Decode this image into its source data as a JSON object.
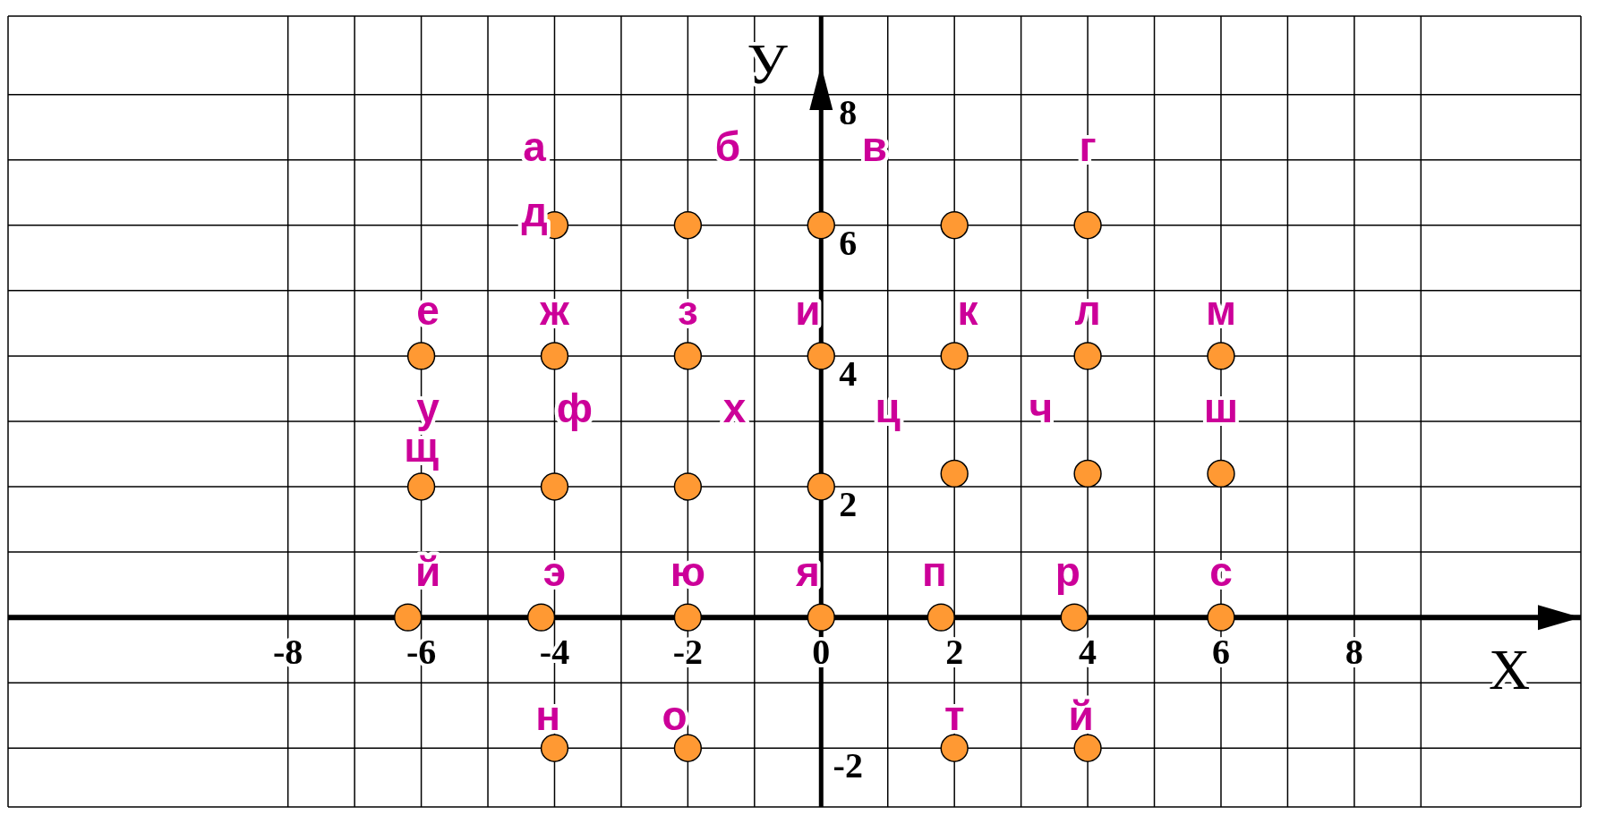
{
  "chart_data": {
    "type": "scatter",
    "xlabel": "X",
    "ylabel": "У",
    "xlim": [
      -12.2,
      11.4
    ],
    "ylim": [
      -2.9,
      9.2
    ],
    "xticks": [
      -8,
      {
        "value": -7,
        "label": null
      },
      -6,
      {
        "value": -5,
        "label": null
      },
      -4,
      {
        "value": -3,
        "label": null
      },
      -2,
      {
        "value": -1,
        "label": null
      },
      0,
      {
        "value": 1,
        "label": null
      },
      2,
      {
        "value": 3,
        "label": null
      },
      4,
      {
        "value": 5,
        "label": null
      },
      6,
      {
        "value": 7,
        "label": null
      },
      8,
      {
        "value": 9,
        "label": null
      }
    ],
    "yticks": [
      -2,
      {
        "value": -1,
        "label": null
      },
      {
        "value": 0,
        "label": null
      },
      {
        "value": 1,
        "label": null
      },
      2,
      {
        "value": 3,
        "label": null
      },
      4,
      {
        "value": 5,
        "label": null
      },
      6,
      {
        "value": 7,
        "label": null
      },
      8
    ],
    "grid": true,
    "marker": "circle",
    "series": [
      {
        "color": "#ff9933",
        "x": [
          -4,
          -2,
          0,
          2,
          4,
          -6,
          -4,
          -2,
          0,
          2,
          4,
          6,
          -6,
          -4,
          -2,
          0,
          2,
          4,
          6,
          -6.2,
          -4.2,
          -2,
          0,
          1.8,
          3.8,
          6,
          -4,
          -2,
          2,
          4
        ],
        "values": [
          6,
          6,
          6,
          6,
          6,
          4,
          4,
          4,
          4,
          4,
          4,
          4,
          2,
          2,
          2,
          2,
          2.2,
          2.2,
          2.2,
          0,
          0,
          0,
          0,
          0,
          0,
          0,
          -2,
          -2,
          -2,
          -2
        ]
      }
    ],
    "annotations": [
      "а",
      "б",
      "в",
      "г",
      "д",
      "е",
      "ж",
      "з",
      "и",
      "к",
      "л",
      "м",
      "у",
      "ф",
      "х",
      "ц",
      "ч",
      "ш",
      "щ",
      "й",
      "э",
      "ю",
      "я",
      "п",
      "р",
      "с",
      "н",
      "о",
      "т",
      "й"
    ]
  }
}
